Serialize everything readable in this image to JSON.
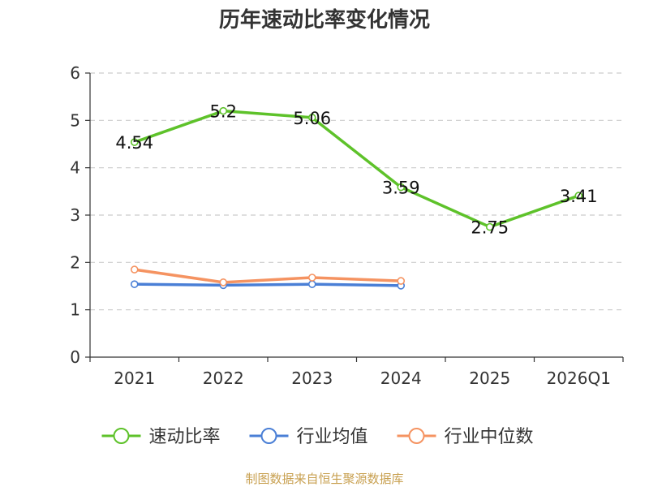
{
  "chart_data": {
    "type": "line",
    "title": "历年速动比率变化情况",
    "categories": [
      "2021",
      "2022",
      "2023",
      "2024",
      "2025",
      "2026Q1"
    ],
    "ylim": [
      0,
      6
    ],
    "yticks": [
      0,
      1,
      2,
      3,
      4,
      5,
      6
    ],
    "grid": true,
    "legend_position": "bottom",
    "series": [
      {
        "name": "速动比率",
        "color": "#5ec22a",
        "values": [
          4.54,
          5.2,
          5.06,
          3.59,
          2.75,
          3.41
        ],
        "labels": [
          "4.54",
          "5.2",
          "5.06",
          "3.59",
          "2.75",
          "3.41"
        ]
      },
      {
        "name": "行业均值",
        "color": "#4a7fd6",
        "values": [
          1.54,
          1.52,
          1.54,
          1.51,
          null,
          null
        ]
      },
      {
        "name": "行业中位数",
        "color": "#f59361",
        "values": [
          1.85,
          1.58,
          1.68,
          1.61,
          null,
          null
        ]
      }
    ]
  },
  "source": "制图数据来自恒生聚源数据库"
}
